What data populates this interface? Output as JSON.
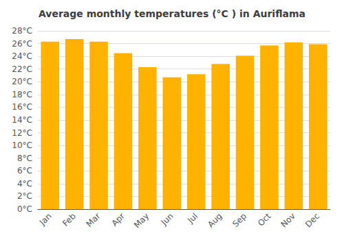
{
  "chart_data": {
    "type": "bar",
    "title": "Average monthly temperatures (°C ) in Auriflama",
    "categories": [
      "Jan",
      "Feb",
      "Mar",
      "Apr",
      "May",
      "Jun",
      "Jul",
      "Aug",
      "Sep",
      "Oct",
      "Nov",
      "Dec"
    ],
    "values": [
      26.3,
      26.7,
      26.3,
      24.5,
      22.3,
      20.7,
      21.2,
      22.8,
      24.1,
      25.7,
      26.2,
      25.9
    ],
    "color": "#FFB300",
    "ylim": [
      0,
      28
    ],
    "yticks": [
      {
        "value": 0,
        "label": "0°C"
      },
      {
        "value": 2,
        "label": "2°C"
      },
      {
        "value": 4,
        "label": "4°C"
      },
      {
        "value": 6,
        "label": "6°C"
      },
      {
        "value": 8,
        "label": "8°C"
      },
      {
        "value": 10,
        "label": "10°C"
      },
      {
        "value": 12,
        "label": "12°C"
      },
      {
        "value": 14,
        "label": "14°C"
      },
      {
        "value": 16,
        "label": "16°C"
      },
      {
        "value": 18,
        "label": "18°C"
      },
      {
        "value": 20,
        "label": "20°C"
      },
      {
        "value": 22,
        "label": "22°C"
      },
      {
        "value": 24,
        "label": "24°C"
      },
      {
        "value": 26,
        "label": "26°C"
      },
      {
        "value": 28,
        "label": "28°C"
      }
    ],
    "grid": true
  }
}
